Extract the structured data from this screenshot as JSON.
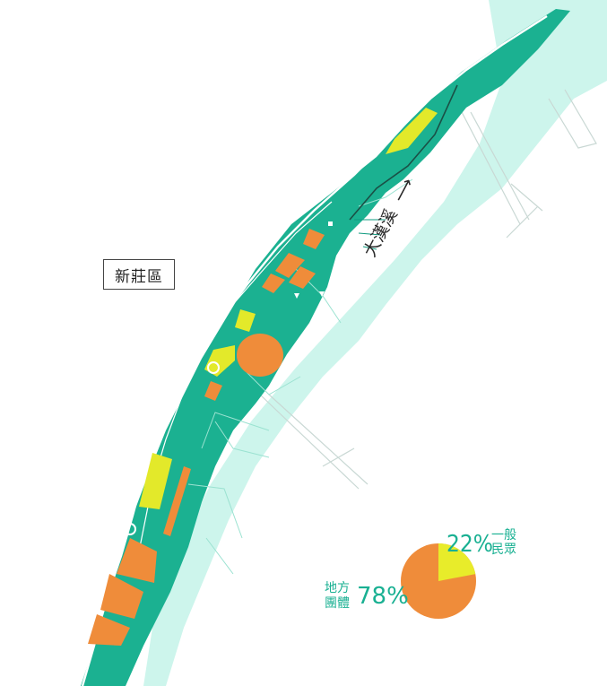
{
  "map": {
    "district_label": "新莊區",
    "river_label": "大漢溪",
    "river_arrow": "⟶"
  },
  "pie": {
    "general_public": {
      "percent": 22,
      "percent_label": "22%",
      "label": "一般民眾",
      "color": "#e8ec2a"
    },
    "local_groups": {
      "percent": 78,
      "percent_label": "78%",
      "label": "地方團體",
      "color": "#ef8c3a"
    }
  },
  "colors": {
    "park": "#1bb191",
    "river": "#cdf5ec",
    "facility_orange": "#ef8c3a",
    "facility_yellow": "#e3e92a",
    "accent_text": "#19b092"
  }
}
